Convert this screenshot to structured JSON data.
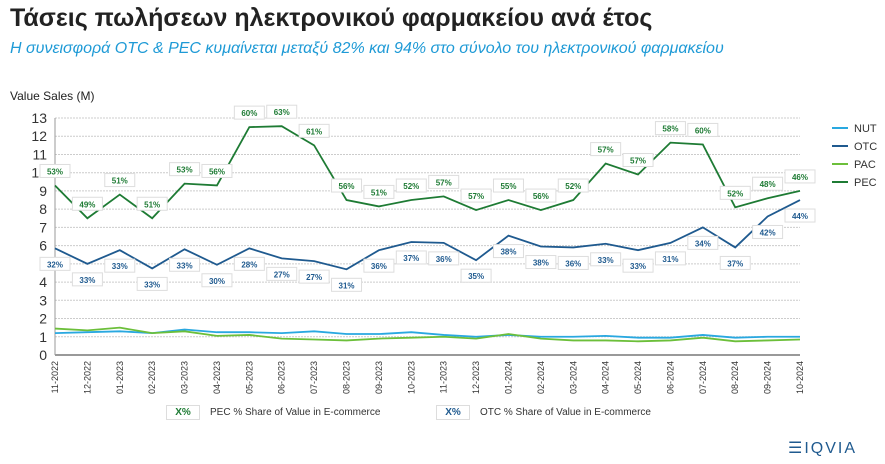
{
  "title": "Τάσεις πωλήσεων ηλεκτρονικού φαρμακείου ανά έτος",
  "subtitle": "Η συνεισφορά OTC & PEC κυμαίνεται μεταξύ 82% και 94% στο σύνολο του ηλεκτρονικού  φαρμακείου",
  "legend_notes": [
    {
      "box": "X%",
      "text": "PEC % Share of Value in E-commerce",
      "color": "#1e7b34"
    },
    {
      "box": "X%",
      "text": "OTC % Share of Value in E-commerce",
      "color": "#1f5a8f"
    }
  ],
  "logo": "IQVIA",
  "chart_data": {
    "type": "line",
    "ylabel": "Value Sales (M)",
    "ylim": [
      0,
      13
    ],
    "yticks": [
      0,
      1,
      2,
      3,
      4,
      5,
      6,
      7,
      8,
      9,
      10,
      11,
      12,
      13
    ],
    "grid": true,
    "legend_placement": "right",
    "categories": [
      "11-2022",
      "12-2022",
      "01-2023",
      "02-2023",
      "03-2023",
      "04-2023",
      "05-2023",
      "06-2023",
      "07-2023",
      "08-2023",
      "09-2023",
      "10-2023",
      "11-2023",
      "12-2023",
      "01-2024",
      "02-2024",
      "03-2024",
      "04-2024",
      "05-2024",
      "06-2024",
      "07-2024",
      "08-2024",
      "09-2024",
      "10-2024"
    ],
    "series": [
      {
        "name": "NUT",
        "color": "#29a8e0",
        "values": [
          1.2,
          1.25,
          1.3,
          1.2,
          1.4,
          1.25,
          1.25,
          1.2,
          1.3,
          1.15,
          1.15,
          1.25,
          1.1,
          1.0,
          1.1,
          1.0,
          1.0,
          1.05,
          0.95,
          0.95,
          1.1,
          0.95,
          1.0,
          1.0
        ]
      },
      {
        "name": "OTC",
        "color": "#1f5a8f",
        "values": [
          5.85,
          5.0,
          5.75,
          4.75,
          5.8,
          4.95,
          5.85,
          5.3,
          5.15,
          4.7,
          5.75,
          6.2,
          6.15,
          5.2,
          6.55,
          5.95,
          5.9,
          6.1,
          5.75,
          6.15,
          7.0,
          5.9,
          7.6,
          8.5
        ],
        "labels": [
          "32%",
          "33%",
          "33%",
          "33%",
          "33%",
          "30%",
          "28%",
          "27%",
          "27%",
          "31%",
          "36%",
          "37%",
          "36%",
          "35%",
          "38%",
          "38%",
          "36%",
          "33%",
          "33%",
          "31%",
          "34%",
          "37%",
          "42%",
          "44%"
        ]
      },
      {
        "name": "PAC",
        "color": "#6cbf3a",
        "values": [
          1.45,
          1.35,
          1.5,
          1.2,
          1.3,
          1.05,
          1.1,
          0.9,
          0.85,
          0.8,
          0.9,
          0.95,
          1.0,
          0.9,
          1.15,
          0.9,
          0.8,
          0.8,
          0.75,
          0.8,
          0.95,
          0.75,
          0.8,
          0.85
        ]
      },
      {
        "name": "PEC",
        "color": "#1e7b34",
        "values": [
          9.3,
          7.5,
          8.8,
          7.5,
          9.4,
          9.3,
          12.5,
          12.55,
          11.5,
          8.5,
          8.15,
          8.5,
          8.7,
          7.95,
          8.5,
          7.95,
          8.5,
          10.5,
          9.9,
          11.65,
          11.55,
          8.1,
          8.6,
          9.0
        ],
        "labels": [
          "53%",
          "49%",
          "51%",
          "51%",
          "53%",
          "56%",
          "60%",
          "63%",
          "61%",
          "56%",
          "51%",
          "52%",
          "57%",
          "57%",
          "55%",
          "56%",
          "52%",
          "57%",
          "57%",
          "58%",
          "60%",
          "52%",
          "48%",
          "46%"
        ]
      }
    ]
  }
}
